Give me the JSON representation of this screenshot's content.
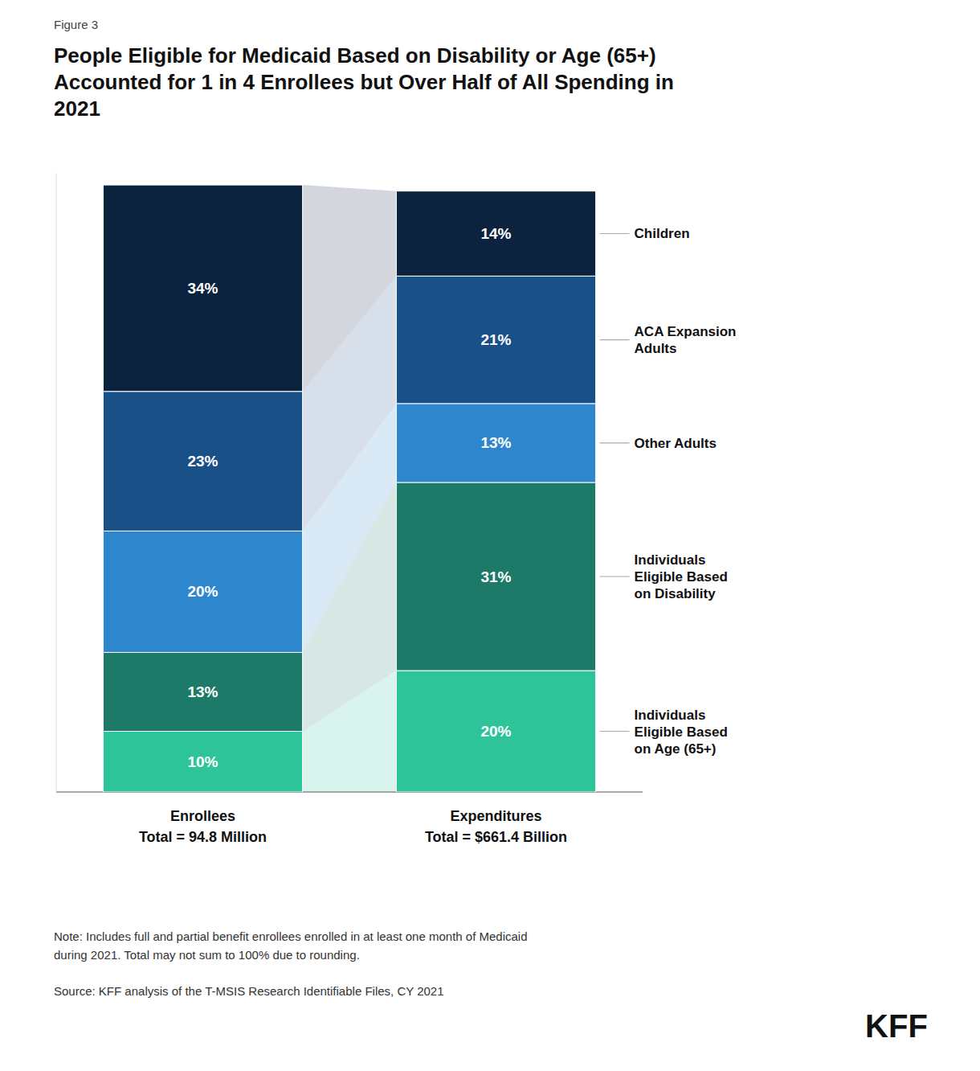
{
  "chart_data": {
    "type": "bar",
    "stacked": true,
    "label": "Figure 3",
    "title": "People Eligible for Medicaid Based on Disability or Age (65+)\nAccounted for 1 in 4 Enrollees but Over Half of All Spending in\n2021",
    "categories": [
      "Enrollees",
      "Expenditures"
    ],
    "series": [
      {
        "name": "Individuals\nEligible Based\non Age (65+)",
        "color": "#2ec49a",
        "values": [
          10,
          20
        ],
        "value_labels": [
          "10%",
          "20%"
        ]
      },
      {
        "name": "Individuals\nEligible Based\non Disability",
        "color": "#1e7a68",
        "values": [
          13,
          31
        ],
        "value_labels": [
          "13%",
          "31%"
        ]
      },
      {
        "name": "Other Adults",
        "color": "#2e87cc",
        "values": [
          20,
          13
        ],
        "value_labels": [
          "20%",
          "13%"
        ]
      },
      {
        "name": "ACA Expansion\nAdults",
        "color": "#1a5088",
        "values": [
          23,
          21
        ],
        "value_labels": [
          "23%",
          "21%"
        ]
      },
      {
        "name": "Children",
        "color": "#0c2340",
        "values": [
          34,
          14
        ],
        "value_labels": [
          "34%",
          "14%"
        ]
      }
    ],
    "ylim": [
      0,
      102
    ],
    "tick_labels": false,
    "grid": false,
    "legend": "right",
    "data_labels": true,
    "annotations": [
      {
        "text": "Total = 94.8 Million",
        "category": 0
      },
      {
        "text": "Total = $661.4 Billion",
        "category": 1
      }
    ],
    "note": "Note: Includes full and partial benefit enrollees enrolled in at least one month of Medicaid\nduring 2021. Total may not sum to 100% due to rounding.",
    "source": "Source: KFF analysis of the T-MSIS Research Identifiable Files, CY 2021",
    "credit": "KFF"
  }
}
